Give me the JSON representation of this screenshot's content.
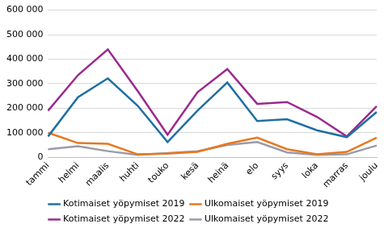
{
  "chart_data": {
    "type": "line",
    "categories": [
      "tammi",
      "helmi",
      "maalis",
      "huhti",
      "touko",
      "kesä",
      "heinä",
      "elo",
      "syys",
      "loka",
      "marras",
      "joulu"
    ],
    "series": [
      {
        "name": "Kotimaiset yöpymiset 2019",
        "color": "#1f6fa3",
        "values": [
          85000,
          245000,
          322000,
          210000,
          62000,
          190000,
          305000,
          148000,
          155000,
          110000,
          82000,
          185000
        ]
      },
      {
        "name": "Ulkomaiset yöpymiset 2019",
        "color": "#e8781e",
        "values": [
          100000,
          58000,
          55000,
          12000,
          15000,
          22000,
          55000,
          80000,
          33000,
          12000,
          22000,
          80000
        ]
      },
      {
        "name": "Kotimaiset yöpymiset 2022",
        "color": "#9b2a8e",
        "values": [
          190000,
          335000,
          440000,
          270000,
          92000,
          265000,
          360000,
          218000,
          225000,
          165000,
          85000,
          208000
        ]
      },
      {
        "name": "Ulkomaiset yöpymiset 2022",
        "color": "#9a9aa8",
        "values": [
          33000,
          45000,
          25000,
          10000,
          17000,
          25000,
          50000,
          62000,
          20000,
          10000,
          12000,
          48000
        ]
      }
    ],
    "ylim": [
      0,
      600000
    ],
    "yticks": [
      0,
      {
        "value": 100000,
        "label": "100 000"
      },
      {
        "value": 200000,
        "label": "200 000"
      },
      {
        "value": 300000,
        "label": "300 000"
      },
      {
        "value": 400000,
        "label": "400 000"
      },
      {
        "value": 500000,
        "label": "500 000"
      },
      {
        "value": 600000,
        "label": "600 000"
      }
    ],
    "grid": true,
    "legend": "bottom"
  }
}
